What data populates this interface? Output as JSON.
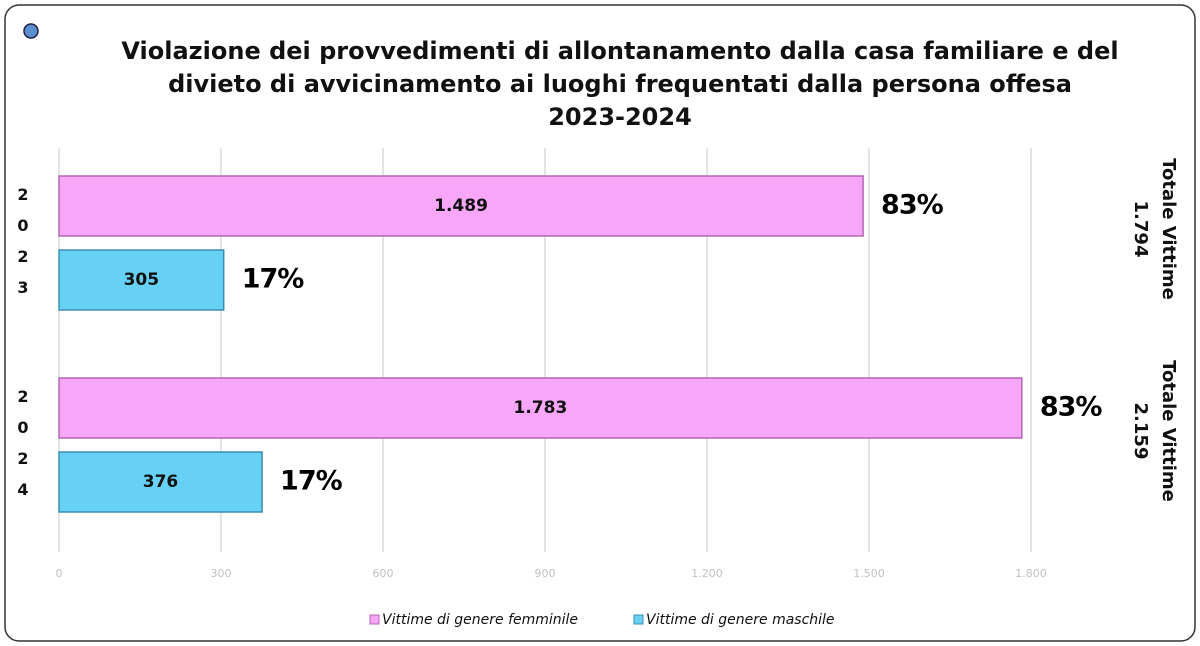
{
  "chart_data": {
    "type": "bar",
    "orientation": "horizontal",
    "title": [
      "Violazione dei provvedimenti di allontanamento dalla casa familiare e del",
      "divieto di avvicinamento ai luoghi frequentati dalla persona offesa",
      "2023-2024"
    ],
    "categories": [
      "2023",
      "2024"
    ],
    "series": [
      {
        "name": "Vittime di genere femminile",
        "color": "#f8a6f8",
        "values": [
          1489,
          1783
        ],
        "value_labels": [
          "1.489",
          "1.783"
        ],
        "percent_labels": [
          "83%",
          "83%"
        ]
      },
      {
        "name": "Vittime di genere maschile",
        "color": "#66d0f5",
        "values": [
          305,
          376
        ],
        "value_labels": [
          "305",
          "376"
        ],
        "percent_labels": [
          "17%",
          "17%"
        ]
      }
    ],
    "total_label": "Totale Vittime",
    "totals": [
      "1.794",
      "2.159"
    ],
    "xlim": [
      0,
      1800
    ],
    "xticks": [
      0,
      300,
      600,
      900,
      {
        "value": 1200,
        "label": "1.200"
      },
      {
        "value": 1500,
        "label": "1.500"
      },
      {
        "value": 1800,
        "label": "1.800"
      }
    ],
    "grid": true,
    "legend": "bottom"
  }
}
